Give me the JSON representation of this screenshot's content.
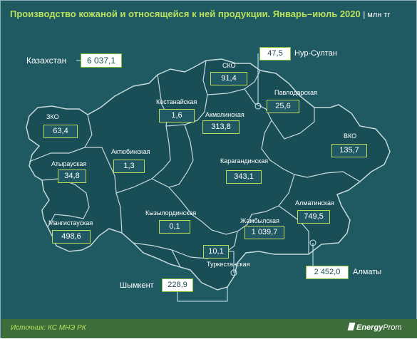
{
  "title": "Производство кожаной и относящейся к ней продукции. Январь–июль 2020",
  "unit": "| млн тг",
  "country": {
    "name": "Казахстан",
    "value": "6 037,1"
  },
  "regions": [
    {
      "id": "zko",
      "name": "ЗКО",
      "value": "63,4"
    },
    {
      "id": "atyrau",
      "name": "Атырауская",
      "value": "34,8"
    },
    {
      "id": "mangystau",
      "name": "Мангистауская",
      "value": "498,6"
    },
    {
      "id": "aktobe",
      "name": "Актюбинская",
      "value": "1,3"
    },
    {
      "id": "kostanay",
      "name": "Костанайская",
      "value": "1,6"
    },
    {
      "id": "sko",
      "name": "СКО",
      "value": "91,4"
    },
    {
      "id": "akmola",
      "name": "Акмолинская",
      "value": "313,8"
    },
    {
      "id": "pavlodar",
      "name": "Павлодарская",
      "value": "25,6"
    },
    {
      "id": "vko",
      "name": "ВКО",
      "value": "135,7"
    },
    {
      "id": "karaganda",
      "name": "Карагандинская",
      "value": "343,1"
    },
    {
      "id": "kyzylorda",
      "name": "Кызылординская",
      "value": "0,1"
    },
    {
      "id": "zhambyl",
      "name": "Жамбылская",
      "value": "1 039,7"
    },
    {
      "id": "almaty_region",
      "name": "Алматинская",
      "value": "749,5"
    },
    {
      "id": "turkestan",
      "name": "Туркестанская",
      "value": "10,1"
    }
  ],
  "cities": [
    {
      "id": "nur_sultan",
      "name": "Нур-Султан",
      "value": "47,5"
    },
    {
      "id": "almaty",
      "name": "Алматы",
      "value": "2 452,0"
    },
    {
      "id": "shymkent",
      "name": "Шымкент",
      "value": "228,9"
    }
  ],
  "source": "Источник: КС МНЭ РК",
  "logo": {
    "bold": "Energy",
    "light": "Prom"
  },
  "colors": {
    "background": "#1f5a63",
    "map_fill": "#1a4e56",
    "border": "#b7dd5b",
    "title": "#b9e15c",
    "footer": "#3c6d3b"
  }
}
